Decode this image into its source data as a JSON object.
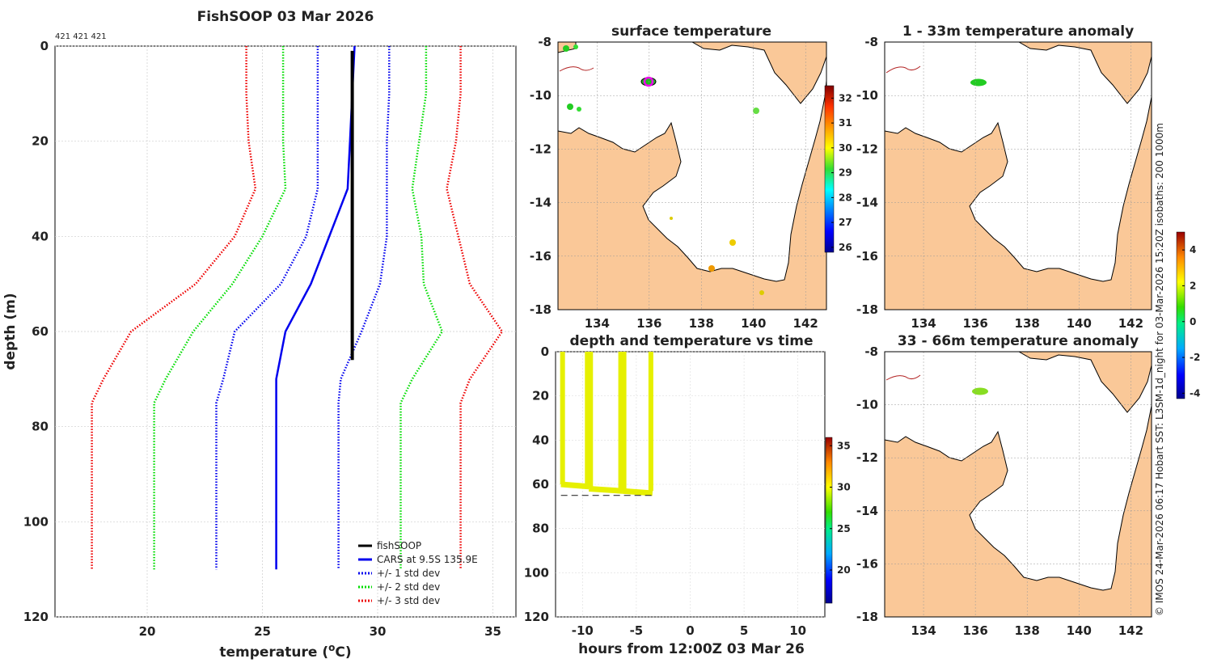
{
  "chart_data": [
    {
      "id": "profile",
      "type": "line",
      "title": "FishSOOP 03 Mar 2026",
      "subtitle": "421 421 421",
      "xlabel": "temperature (oC)",
      "xlabel_main": "temperature (",
      "xlabel_sup": "o",
      "xlabel_end": "C)",
      "ylabel": "depth (m)",
      "xlim": [
        16,
        36
      ],
      "ylim": [
        120,
        0
      ],
      "xticks": [
        20,
        25,
        30,
        35
      ],
      "yticks": [
        0,
        20,
        40,
        60,
        80,
        100,
        120
      ],
      "grid": true,
      "legend_position": "bottom-right",
      "legend": [
        "fishSOOP",
        "CARS at 9.5S 135.9E",
        "+/- 1 std dev",
        "+/- 2 std dev",
        "+/- 3 std dev"
      ],
      "series": [
        {
          "name": "CARS at 9.5S 135.9E",
          "color": "#0000ee",
          "style": "solid",
          "x": [
            29.0,
            28.9,
            28.8,
            28.7,
            27.1,
            26.0,
            25.6,
            25.6,
            25.6
          ],
          "y": [
            0,
            10,
            20,
            30,
            50,
            60,
            70,
            75,
            110
          ]
        },
        {
          "name": "+1 std dev",
          "color": "#0000ee",
          "style": "dotted",
          "x": [
            30.5,
            30.5,
            30.4,
            30.4,
            30.4,
            30.1,
            29.3,
            28.4,
            28.3,
            28.3
          ],
          "y": [
            0,
            10,
            20,
            30,
            40,
            50,
            60,
            70,
            75,
            110
          ]
        },
        {
          "name": "-1 std dev",
          "color": "#0000ee",
          "style": "dotted",
          "x": [
            27.4,
            27.4,
            27.4,
            27.4,
            26.9,
            25.8,
            23.8,
            23.3,
            23.0,
            23.0
          ],
          "y": [
            0,
            10,
            20,
            30,
            40,
            50,
            60,
            70,
            75,
            110
          ]
        },
        {
          "name": "+2 std dev",
          "color": "#00dd00",
          "style": "dotted",
          "x": [
            32.1,
            32.1,
            31.8,
            31.5,
            31.9,
            32.0,
            32.8,
            31.5,
            31.0,
            31.0
          ],
          "y": [
            0,
            10,
            20,
            30,
            40,
            50,
            60,
            70,
            75,
            110
          ]
        },
        {
          "name": "-2 std dev",
          "color": "#00dd00",
          "style": "dotted",
          "x": [
            25.9,
            25.9,
            25.9,
            26.0,
            25.0,
            23.7,
            22.0,
            20.8,
            20.3,
            20.3
          ],
          "y": [
            0,
            10,
            20,
            30,
            40,
            50,
            60,
            70,
            75,
            110
          ]
        },
        {
          "name": "+3 std dev",
          "color": "#ee0000",
          "style": "dotted",
          "x": [
            33.6,
            33.6,
            33.4,
            33.0,
            33.5,
            34.0,
            35.4,
            34.0,
            33.6,
            33.6
          ],
          "y": [
            0,
            10,
            20,
            30,
            40,
            50,
            60,
            70,
            75,
            110
          ]
        },
        {
          "name": "-3 std dev",
          "color": "#ee0000",
          "style": "dotted",
          "x": [
            24.3,
            24.3,
            24.4,
            24.7,
            23.8,
            22.1,
            19.3,
            18.1,
            17.6,
            17.6
          ],
          "y": [
            0,
            10,
            20,
            30,
            40,
            50,
            60,
            70,
            75,
            110
          ]
        },
        {
          "name": "fishSOOP",
          "color": "#000000",
          "style": "solid",
          "bold": true,
          "x": [
            28.9,
            28.9,
            28.9,
            28.9,
            28.9,
            28.9,
            28.9,
            28.9
          ],
          "y": [
            1,
            10,
            20,
            30,
            40,
            50,
            60,
            66
          ]
        }
      ]
    },
    {
      "id": "surface",
      "type": "map",
      "title": "surface temperature",
      "xlim": [
        132.5,
        142.8
      ],
      "ylim": [
        -18,
        -8
      ],
      "xticks": [
        134,
        136,
        138,
        140,
        142
      ],
      "yticks": [
        -8,
        -10,
        -12,
        -14,
        -16,
        -18
      ],
      "colorbar": {
        "min": 25.8,
        "max": 32.5,
        "ticks": [
          26,
          27,
          28,
          29,
          30,
          31,
          32
        ]
      }
    },
    {
      "id": "anom1",
      "type": "map",
      "title": "1 - 33m temperature anomaly",
      "xlim": [
        132.5,
        142.8
      ],
      "ylim": [
        -18,
        -8
      ],
      "xticks": [
        134,
        136,
        138,
        140,
        142
      ],
      "yticks": [
        -8,
        -10,
        -12,
        -14,
        -16,
        -18
      ],
      "colorbar": {
        "min": -4.3,
        "max": 5.0,
        "ticks": [
          4,
          2,
          0,
          -2,
          -4
        ]
      }
    },
    {
      "id": "anom2",
      "type": "map",
      "title": "33 - 66m temperature anomaly",
      "xlim": [
        132.5,
        142.8
      ],
      "ylim": [
        -18,
        -8
      ],
      "xticks": [
        134,
        136,
        138,
        140,
        142
      ],
      "yticks": [
        -8,
        -10,
        -12,
        -14,
        -16,
        -18
      ]
    },
    {
      "id": "timeseries",
      "type": "scatter",
      "title": "depth and temperature vs time",
      "xlabel": "hours from 12:00Z 03 Mar 26",
      "xlim": [
        -12.5,
        12.5
      ],
      "ylim": [
        120,
        0
      ],
      "xticks": [
        -10,
        -5,
        0,
        5,
        10
      ],
      "yticks": [
        0,
        20,
        40,
        60,
        80,
        100,
        120
      ],
      "casts": [
        {
          "start": -12.0,
          "end": -9.4,
          "bottom": 60
        },
        {
          "start": -9.4,
          "end": -6.3,
          "bottom": 62
        },
        {
          "start": -6.3,
          "end": -3.5,
          "bottom": 63
        }
      ],
      "reference_depth": 65,
      "colorbar": {
        "min": 16,
        "max": 36,
        "ticks": [
          20,
          25,
          30,
          35
        ]
      }
    }
  ],
  "side_note": "© IMOS 24-Mar-2026 06:17 Hobart SST: L3SM-1d_night for 03-Mar-2026 15:20Z isobaths: 200  1000m",
  "colors": {
    "land": "#fac898",
    "ocean": "#ffffff",
    "coast": "#000000",
    "dots": "#ee00ee",
    "river": "#b22222"
  }
}
